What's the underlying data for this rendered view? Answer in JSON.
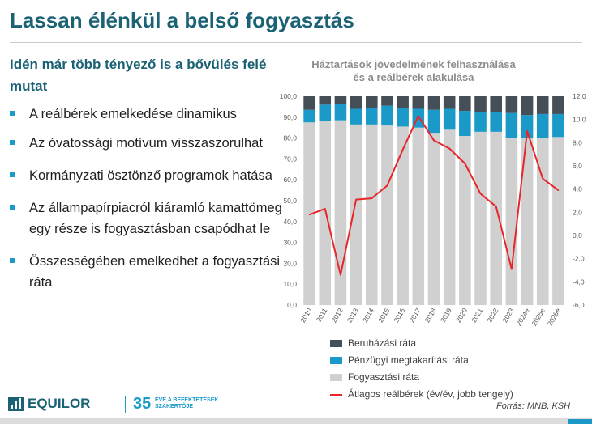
{
  "slide": {
    "title": "Lassan élénkül a belső fogyasztás",
    "subtitle": "Idén már több tényező is a bővülés felé mutat",
    "bullets": [
      "A reálbérek emelkedése dinamikus",
      "Az óvatossági motívum visszaszorulhat",
      "Kormányzati ösztönző programok hatása",
      "Az állampapírpiacról kiáramló kamattömeg egy része is fogyasztásban csapódhat le",
      "Összességében emelkedhet a fogyasztási ráta"
    ],
    "source": "Forrás: MNB, KSH"
  },
  "brand": {
    "name": "EQUILOR",
    "anniversary_number": "35",
    "anniversary_text": "ÉVE A BEFEKTETÉSEK SZAKERTŐJE",
    "color_primary": "#1b6275",
    "color_accent": "#1b9ac9"
  },
  "chart_data": {
    "type": "bar",
    "stacked": true,
    "title_line1": "Háztartások jövedelmének felhasználása",
    "title_line2": "és a reálbérek alakulása",
    "categories": [
      "2010",
      "2011",
      "2012",
      "2013",
      "2014",
      "2015",
      "2016",
      "2017",
      "2018",
      "2019",
      "2020",
      "2021",
      "2022",
      "2023",
      "2024e",
      "2025e",
      "2026e"
    ],
    "series": [
      {
        "name": "Fogyasztási ráta",
        "color": "#d0d0d0",
        "axis": "left",
        "values": [
          87.5,
          88,
          88.5,
          86.5,
          86.5,
          86,
          85.5,
          85,
          82.5,
          84,
          81,
          83,
          83,
          80,
          80,
          80,
          80.5
        ]
      },
      {
        "name": "Pénzügyi megtakarítási ráta",
        "color": "#1b9ac9",
        "axis": "left",
        "values": [
          6,
          8,
          8,
          7.5,
          8,
          9.5,
          9,
          9,
          11,
          10,
          12,
          9.5,
          9.5,
          12,
          11,
          11.5,
          11
        ]
      },
      {
        "name": "Beruházási ráta",
        "color": "#454f57",
        "axis": "left",
        "values": [
          6.5,
          4,
          3.5,
          6,
          5.5,
          4.5,
          5.5,
          6,
          6.5,
          6,
          7,
          7.5,
          7.5,
          8,
          9,
          8.5,
          8.5
        ]
      },
      {
        "name": "Átlagos reálbérek (év/év, jobb tengely)",
        "color": "#e8262a",
        "axis": "right",
        "type": "line",
        "values": [
          1.8,
          2.3,
          -3.4,
          3.1,
          3.2,
          4.3,
          7.4,
          10.3,
          8.2,
          7.5,
          6.2,
          3.6,
          2.5,
          -2.9,
          9.0,
          4.9,
          3.9
        ]
      }
    ],
    "y_left": {
      "min": 0,
      "max": 100,
      "step": 10,
      "tick_labels": [
        "0,0",
        "10,0",
        "20,0",
        "30,0",
        "40,0",
        "50,0",
        "60,0",
        "70,0",
        "80,0",
        "90,0",
        "100,0"
      ]
    },
    "y_right": {
      "min": -6,
      "max": 12,
      "step": 2,
      "tick_labels": [
        "-6,0",
        "-4,0",
        "-2,0",
        "0,0",
        "2,0",
        "4,0",
        "6,0",
        "8,0",
        "10,0",
        "12,0"
      ]
    },
    "legend": [
      "Beruházási ráta",
      "Pénzügyi megtakarítási ráta",
      "Fogyasztási ráta",
      "Átlagos reálbérek (év/év, jobb tengely)"
    ],
    "legend_position": "bottom",
    "grid": false
  }
}
